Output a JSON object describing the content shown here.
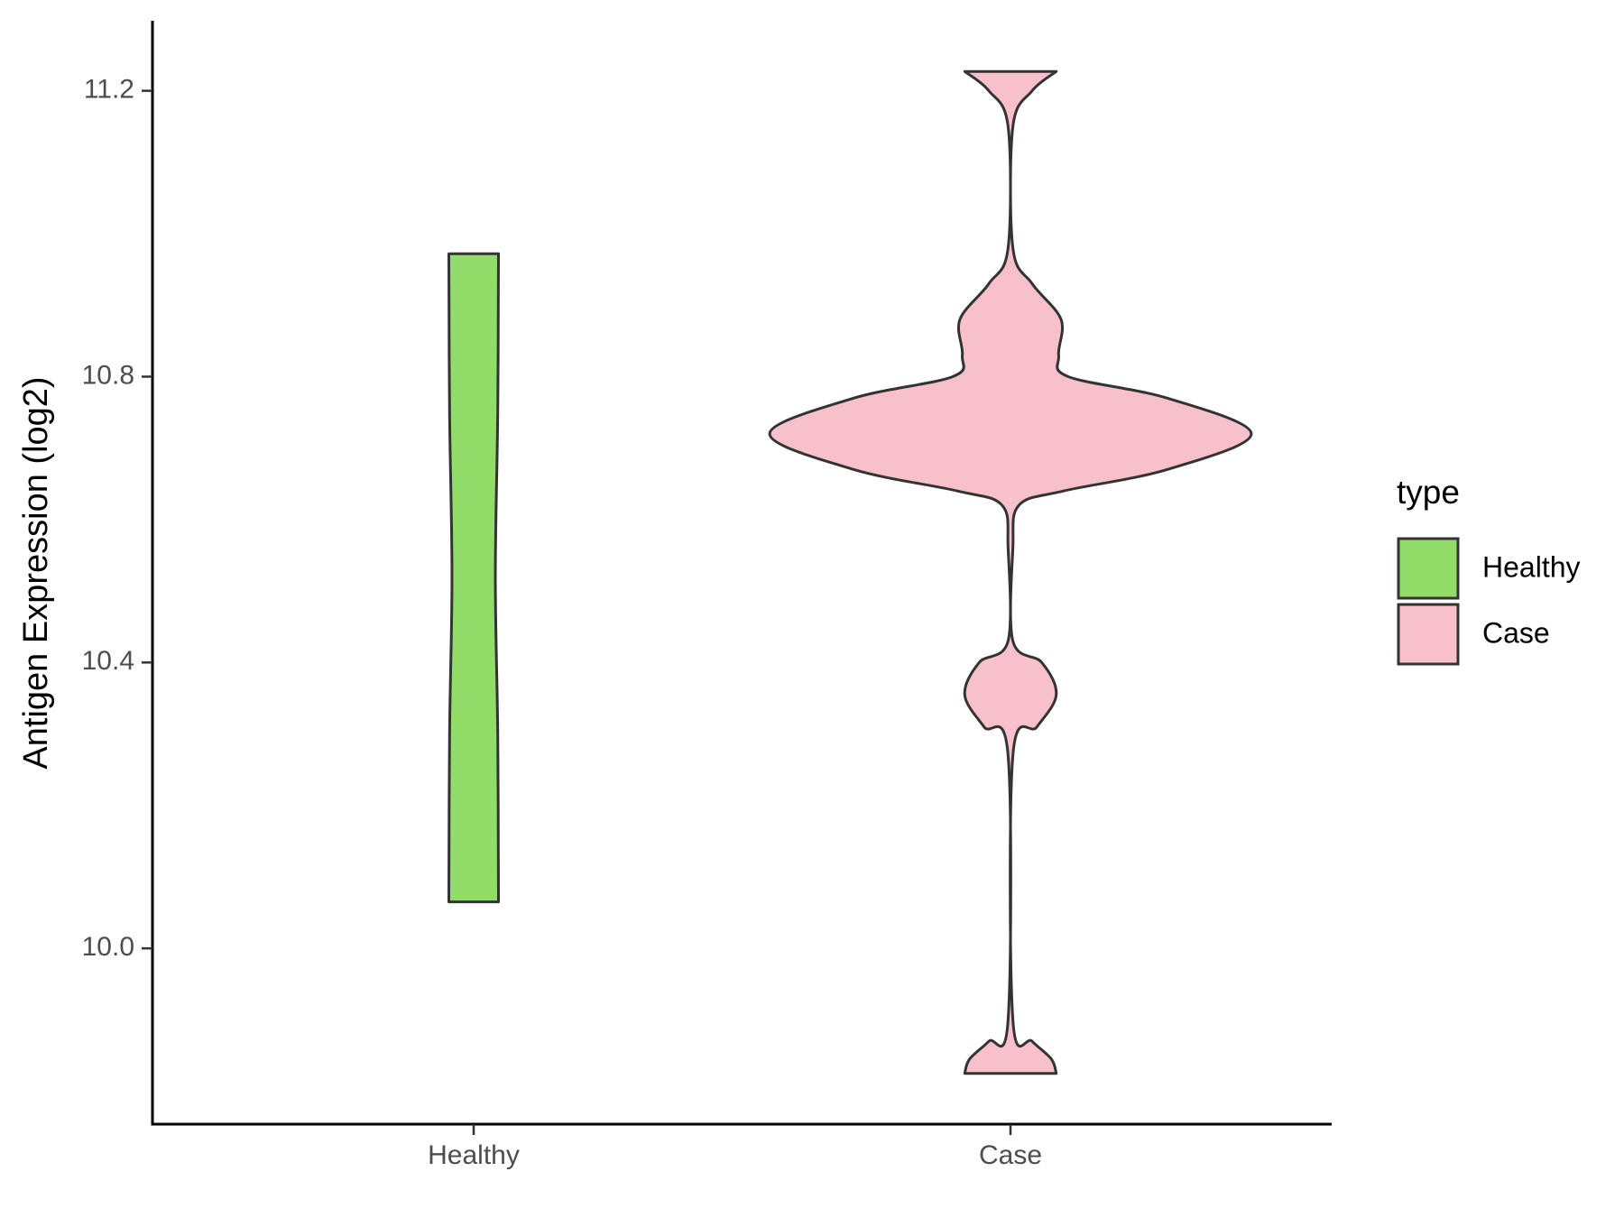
{
  "chart_data": {
    "type": "violin",
    "y_label": "Antigen Expression (log2)",
    "categories": [
      "Healthy",
      "Case"
    ],
    "legend_title": "type",
    "legend_position": "right",
    "ylim": [
      9.754,
      11.298
    ],
    "yticks": [
      {
        "value": 10.0,
        "label": "10.0"
      },
      10.4,
      10.8,
      11.2
    ],
    "series": [
      {
        "name": "Healthy",
        "color": "#92dc69",
        "y": [
          10.065,
          10.3,
          10.52,
          10.75,
          10.972
        ],
        "density": [
          0.103,
          0.1,
          0.09,
          0.1,
          0.103
        ]
      },
      {
        "name": "Case",
        "color": "#f8c0cb",
        "y": [
          9.825,
          9.845,
          9.87,
          9.9,
          10.27,
          10.31,
          10.355,
          10.4,
          10.43,
          10.56,
          10.62,
          10.64,
          10.67,
          10.72,
          10.77,
          10.8,
          10.83,
          10.88,
          10.93,
          10.98,
          11.15,
          11.2,
          11.227
        ],
        "density": [
          0.19,
          0.17,
          0.09,
          0.01,
          0.01,
          0.11,
          0.19,
          0.13,
          0.01,
          0.01,
          0.035,
          0.22,
          0.65,
          1.0,
          0.65,
          0.24,
          0.2,
          0.21,
          0.09,
          0.01,
          0.01,
          0.09,
          0.19
        ]
      }
    ]
  }
}
